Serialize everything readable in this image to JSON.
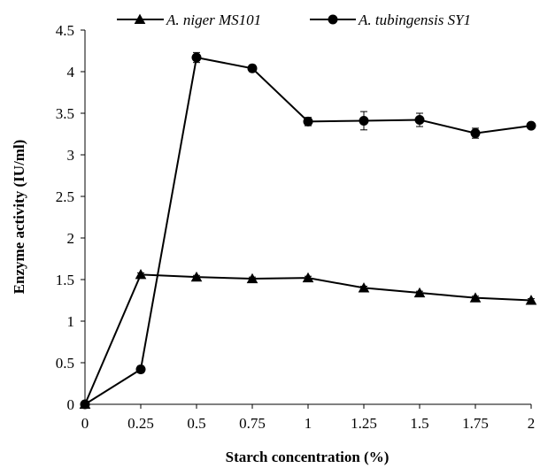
{
  "chart_data": {
    "type": "line",
    "title": "",
    "xlabel": "Starch concentration (%)",
    "ylabel": "Enzyme activity (IU/ml)",
    "x": [
      0,
      0.25,
      0.5,
      0.75,
      1,
      1.25,
      1.5,
      1.75,
      2
    ],
    "x_tick_labels": [
      "0",
      "0.25",
      "0.5",
      "0.75",
      "1",
      "1.25",
      "1.5",
      "1.75",
      "2"
    ],
    "y_tick_labels": [
      "0",
      "0.5",
      "1",
      "1.5",
      "2",
      "2.5",
      "3",
      "3.5",
      "4",
      "4.5"
    ],
    "xlim": [
      0,
      2
    ],
    "ylim": [
      0,
      4.5
    ],
    "grid": false,
    "legend_position": "top",
    "series": [
      {
        "name": "A. niger MS101",
        "marker": "triangle",
        "color": "#000000",
        "values": [
          0.0,
          1.56,
          1.53,
          1.51,
          1.52,
          1.4,
          1.34,
          1.28,
          1.25
        ],
        "errors": [
          0,
          0.02,
          0.02,
          0.02,
          0.02,
          0.02,
          0.02,
          0.02,
          0.02
        ]
      },
      {
        "name": "A. tubingensis SY1",
        "marker": "circle",
        "color": "#000000",
        "values": [
          0.0,
          0.42,
          4.17,
          4.04,
          3.4,
          3.41,
          3.42,
          3.26,
          3.35
        ],
        "errors": [
          0,
          0.04,
          0.06,
          0.04,
          0.05,
          0.11,
          0.08,
          0.06,
          0.03
        ]
      }
    ]
  }
}
